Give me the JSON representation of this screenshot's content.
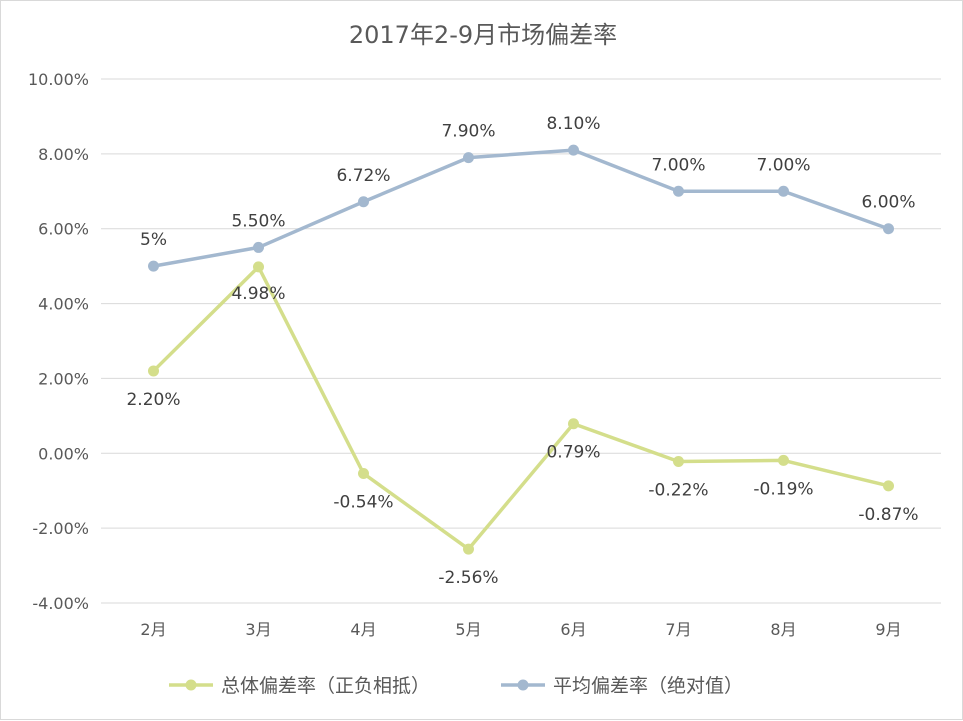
{
  "chart_data": {
    "type": "line",
    "title": "2017年2-9月市场偏差率",
    "categories": [
      "2月",
      "3月",
      "4月",
      "5月",
      "6月",
      "7月",
      "8月",
      "9月"
    ],
    "ylim": [
      -4,
      10
    ],
    "yticks": [
      {
        "value": -4,
        "label": "-4.00%"
      },
      {
        "value": -2,
        "label": "-2.00%"
      },
      {
        "value": 0,
        "label": "0.00%"
      },
      {
        "value": 2,
        "label": "2.00%"
      },
      {
        "value": 4,
        "label": "4.00%"
      },
      {
        "value": 6,
        "label": "6.00%"
      },
      {
        "value": 8,
        "label": "8.00%"
      },
      {
        "value": 10,
        "label": "10.00%"
      }
    ],
    "grid": true,
    "legend_position": "bottom",
    "series": [
      {
        "name": "总体偏差率（正负相抵）",
        "color": "#d4de8b",
        "label_placement": "below",
        "values": [
          2.2,
          4.98,
          -0.54,
          -2.56,
          0.79,
          -0.22,
          -0.19,
          -0.87
        ],
        "labels": [
          "2.20%",
          "4.98%",
          "-0.54%",
          "-2.56%",
          "0.79%",
          "-0.22%",
          "-0.19%",
          "-0.87%"
        ]
      },
      {
        "name": "平均偏差率（绝对值）",
        "color": "#a3b8cf",
        "label_placement": "above",
        "values": [
          5.0,
          5.5,
          6.72,
          7.9,
          8.1,
          7.0,
          7.0,
          6.0
        ],
        "labels": [
          "5%",
          "5.50%",
          "6.72%",
          "7.90%",
          "8.10%",
          "7.00%",
          "7.00%",
          "6.00%"
        ]
      }
    ]
  }
}
